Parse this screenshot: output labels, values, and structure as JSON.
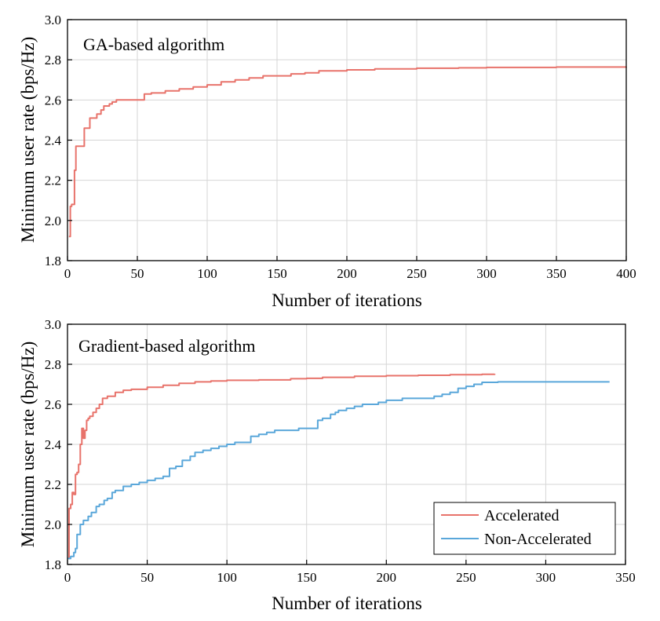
{
  "chart_data": [
    {
      "type": "line",
      "annotation": "GA-based algorithm",
      "xlabel": "Number of iterations",
      "ylabel": "Minimum user rate (bps/Hz)",
      "xlim": [
        0,
        400
      ],
      "ylim": [
        1.8,
        3.0
      ],
      "xticks": [
        0,
        50,
        100,
        150,
        200,
        250,
        300,
        350,
        400
      ],
      "yticks": [
        1.8,
        2.0,
        2.2,
        2.4,
        2.6,
        2.8,
        3.0
      ],
      "xtick_labels": [
        "0",
        "50",
        "100",
        "150",
        "200",
        "250",
        "300",
        "350",
        "400"
      ],
      "ytick_labels": [
        "1.8",
        "2.0",
        "2.2",
        "2.4",
        "2.6",
        "2.8",
        "3.0"
      ],
      "grid": true,
      "series": [
        {
          "name": "GA",
          "color": "#e8736b",
          "x": [
            1,
            2,
            3,
            5,
            6,
            8,
            11,
            12,
            14,
            16,
            19,
            21,
            24,
            26,
            30,
            32,
            35,
            40,
            50,
            55,
            60,
            70,
            80,
            90,
            100,
            110,
            120,
            130,
            140,
            150,
            160,
            170,
            180,
            200,
            220,
            250,
            280,
            300,
            350,
            400
          ],
          "y": [
            1.92,
            2.07,
            2.08,
            2.25,
            2.37,
            2.37,
            2.37,
            2.46,
            2.46,
            2.51,
            2.51,
            2.53,
            2.55,
            2.57,
            2.58,
            2.59,
            2.6,
            2.6,
            2.6,
            2.63,
            2.635,
            2.645,
            2.655,
            2.665,
            2.675,
            2.69,
            2.7,
            2.71,
            2.72,
            2.72,
            2.73,
            2.735,
            2.745,
            2.75,
            2.755,
            2.758,
            2.76,
            2.762,
            2.764,
            2.765
          ]
        }
      ]
    },
    {
      "type": "line",
      "annotation": "Gradient-based algorithm",
      "xlabel": "Number of iterations",
      "ylabel": "Minimum user rate (bps/Hz)",
      "xlim": [
        0,
        350
      ],
      "ylim": [
        1.8,
        3.0
      ],
      "xticks": [
        0,
        50,
        100,
        150,
        200,
        250,
        300,
        350
      ],
      "yticks": [
        1.8,
        2.0,
        2.2,
        2.4,
        2.6,
        2.8,
        3.0
      ],
      "xtick_labels": [
        "0",
        "50",
        "100",
        "150",
        "200",
        "250",
        "300",
        "350"
      ],
      "ytick_labels": [
        "1.8",
        "2.0",
        "2.2",
        "2.4",
        "2.6",
        "2.8",
        "3.0"
      ],
      "grid": true,
      "legend_position": "bottom-right",
      "series": [
        {
          "name": "Accelerated",
          "color": "#e8736b",
          "x": [
            0,
            1,
            2,
            3,
            4,
            5,
            6,
            7,
            8,
            9,
            10,
            11,
            12,
            13,
            14,
            16,
            18,
            20,
            22,
            25,
            30,
            35,
            40,
            50,
            60,
            70,
            80,
            90,
            100,
            120,
            140,
            150,
            160,
            180,
            200,
            220,
            240,
            260,
            268
          ],
          "y": [
            1.83,
            2.08,
            2.1,
            2.16,
            2.15,
            2.25,
            2.26,
            2.3,
            2.4,
            2.48,
            2.43,
            2.47,
            2.52,
            2.53,
            2.54,
            2.56,
            2.58,
            2.6,
            2.63,
            2.64,
            2.66,
            2.67,
            2.675,
            2.685,
            2.695,
            2.705,
            2.712,
            2.717,
            2.72,
            2.722,
            2.728,
            2.73,
            2.735,
            2.74,
            2.743,
            2.745,
            2.748,
            2.75,
            2.752
          ]
        },
        {
          "name": "Non-Accelerated",
          "color": "#5aa7da",
          "x": [
            0,
            2,
            4,
            5,
            6,
            8,
            10,
            13,
            15,
            18,
            20,
            23,
            25,
            28,
            30,
            35,
            40,
            45,
            50,
            55,
            60,
            62,
            64,
            68,
            72,
            77,
            80,
            85,
            90,
            95,
            100,
            105,
            110,
            115,
            120,
            125,
            130,
            135,
            140,
            145,
            150,
            155,
            157,
            160,
            165,
            168,
            170,
            175,
            180,
            185,
            190,
            195,
            200,
            205,
            210,
            220,
            230,
            235,
            240,
            245,
            250,
            255,
            260,
            270,
            280,
            300,
            320,
            340
          ],
          "y": [
            1.83,
            1.84,
            1.86,
            1.88,
            1.95,
            2.0,
            2.02,
            2.04,
            2.06,
            2.09,
            2.1,
            2.12,
            2.13,
            2.16,
            2.17,
            2.19,
            2.2,
            2.21,
            2.22,
            2.23,
            2.24,
            2.24,
            2.28,
            2.29,
            2.32,
            2.34,
            2.36,
            2.37,
            2.38,
            2.39,
            2.4,
            2.41,
            2.41,
            2.44,
            2.45,
            2.46,
            2.47,
            2.47,
            2.47,
            2.48,
            2.48,
            2.48,
            2.52,
            2.53,
            2.55,
            2.56,
            2.57,
            2.58,
            2.59,
            2.6,
            2.6,
            2.61,
            2.62,
            2.62,
            2.63,
            2.63,
            2.64,
            2.65,
            2.66,
            2.68,
            2.69,
            2.7,
            2.71,
            2.712,
            2.712,
            2.712,
            2.712,
            2.712
          ]
        }
      ]
    }
  ]
}
